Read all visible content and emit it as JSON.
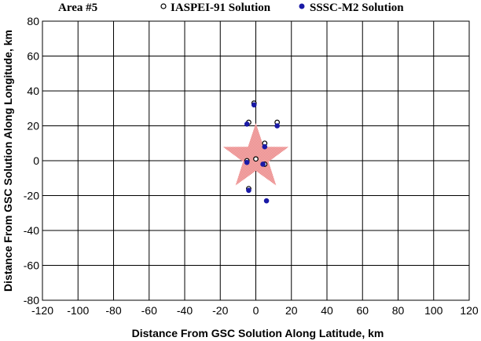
{
  "chart_data": {
    "type": "scatter",
    "title": "Area #5",
    "xlabel": "Distance From GSC Solution Along Latitude, km",
    "ylabel": "Distance From GSC Solution Along Longitude, km",
    "xlim": [
      -120,
      120
    ],
    "ylim": [
      -80,
      80
    ],
    "x_ticks": [
      -120,
      -100,
      -80,
      -60,
      -40,
      -20,
      0,
      20,
      40,
      60,
      80,
      100,
      120
    ],
    "y_ticks": [
      -80,
      -60,
      -40,
      -20,
      0,
      20,
      40,
      60,
      80
    ],
    "grid": true,
    "legend_position": "top",
    "series": [
      {
        "name": "IASPEI-91 Solution",
        "marker": "open-circle",
        "color": "#000000",
        "points": [
          {
            "x": -1,
            "y": 33
          },
          {
            "x": -4,
            "y": 22
          },
          {
            "x": 12,
            "y": 22
          },
          {
            "x": 5,
            "y": 10
          },
          {
            "x": 0,
            "y": 1
          },
          {
            "x": -5,
            "y": 0
          },
          {
            "x": 5,
            "y": -2
          },
          {
            "x": -4,
            "y": -16
          }
        ]
      },
      {
        "name": "SSSC-M2 Solution",
        "marker": "filled-circle",
        "color": "#1a1aa6",
        "points": [
          {
            "x": -1,
            "y": 32
          },
          {
            "x": -5,
            "y": 21
          },
          {
            "x": 12,
            "y": 20
          },
          {
            "x": 5,
            "y": 8
          },
          {
            "x": -5,
            "y": -1
          },
          {
            "x": 4,
            "y": -2
          },
          {
            "x": -4,
            "y": -17
          },
          {
            "x": 6,
            "y": -23
          }
        ]
      }
    ],
    "reference_marker": {
      "shape": "star",
      "x": 0,
      "y": 0,
      "color": "#f4a7a7"
    }
  }
}
